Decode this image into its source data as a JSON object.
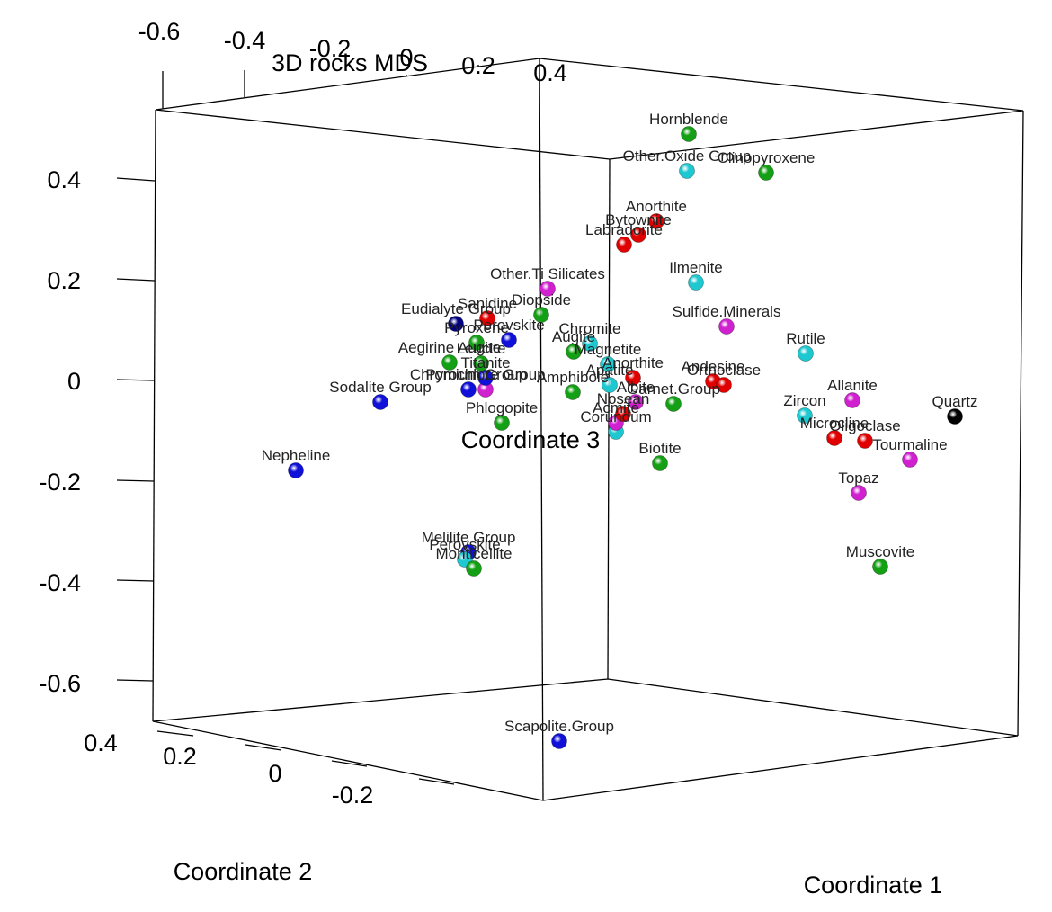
{
  "chart_data": {
    "type": "scatter",
    "title": "3D rocks MDS",
    "xlabel": "Coordinate 1",
    "ylabel": "Coordinate 2",
    "zlabel": "Coordinate 3",
    "ticks": {
      "top": [
        "-0.6",
        "-0.4",
        "-0.2",
        "0",
        "0.2",
        "0.4"
      ],
      "left": [
        "0.4",
        "0.2",
        "0",
        "-0.2",
        "-0.4",
        "-0.6"
      ],
      "front": [
        "0.4",
        "0.2",
        "0",
        "-0.2"
      ]
    },
    "colors": {
      "red": "#e00000",
      "green": "#14a014",
      "blue": "#1010d8",
      "cyan": "#1ec8d0",
      "magenta": "#d020d0",
      "black": "#000000",
      "navy": "#000080"
    },
    "points": [
      {
        "label": "Hornblende",
        "color": "green",
        "sx": 766,
        "sy": 149
      },
      {
        "label": "Other.Oxide Group",
        "color": "cyan",
        "sx": 764,
        "sy": 190
      },
      {
        "label": "Clinopyroxene",
        "color": "green",
        "sx": 852,
        "sy": 192
      },
      {
        "label": "Anorthite",
        "color": "red",
        "sx": 730,
        "sy": 246
      },
      {
        "label": "Bytownite",
        "color": "red",
        "sx": 710,
        "sy": 261
      },
      {
        "label": "Labradorite",
        "color": "red",
        "sx": 694,
        "sy": 272
      },
      {
        "label": "Ilmenite",
        "color": "cyan",
        "sx": 774,
        "sy": 314
      },
      {
        "label": "Other.Ti Silicates",
        "color": "magenta",
        "sx": 609,
        "sy": 321
      },
      {
        "label": "Diopside",
        "color": "green",
        "sx": 602,
        "sy": 350
      },
      {
        "label": "Sanidine",
        "color": "red",
        "sx": 542,
        "sy": 354
      },
      {
        "label": "Eudialyte Group",
        "color": "navy",
        "sx": 507,
        "sy": 360
      },
      {
        "label": "Pyroxene",
        "color": "green",
        "sx": 530,
        "sy": 381
      },
      {
        "label": "Perovskite",
        "color": "blue",
        "sx": 566,
        "sy": 378
      },
      {
        "label": "Sulfide.Minerals",
        "color": "magenta",
        "sx": 808,
        "sy": 363
      },
      {
        "label": "Chromite",
        "color": "cyan",
        "sx": 656,
        "sy": 382
      },
      {
        "label": "Augite",
        "color": "green",
        "sx": 638,
        "sy": 391
      },
      {
        "label": "Aegirine Augite",
        "color": "green",
        "sx": 500,
        "sy": 403
      },
      {
        "label": "Leucite",
        "color": "green",
        "sx": 535,
        "sy": 404
      },
      {
        "label": "Rutile",
        "color": "cyan",
        "sx": 896,
        "sy": 393
      },
      {
        "label": "Magnetite",
        "color": "cyan",
        "sx": 676,
        "sy": 405
      },
      {
        "label": "Anorthite",
        "color": "red",
        "sx": 704,
        "sy": 420
      },
      {
        "label": "Andesine",
        "color": "red",
        "sx": 793,
        "sy": 424
      },
      {
        "label": "Orthoclase",
        "color": "red",
        "sx": 805,
        "sy": 428
      },
      {
        "label": "Sodalite Group",
        "color": "blue",
        "sx": 423,
        "sy": 447
      },
      {
        "label": "Chromium Group",
        "color": "blue",
        "sx": 521,
        "sy": 433
      },
      {
        "label": "Pyrochlore Group",
        "color": "magenta",
        "sx": 540,
        "sy": 433
      },
      {
        "label": "Titanite",
        "color": "blue",
        "sx": 540,
        "sy": 420
      },
      {
        "label": "Amphibole",
        "color": "green",
        "sx": 637,
        "sy": 436
      },
      {
        "label": "Apatite",
        "color": "cyan",
        "sx": 678,
        "sy": 428
      },
      {
        "label": "Garnet.Group",
        "color": "green",
        "sx": 749,
        "sy": 449
      },
      {
        "label": "Albite",
        "color": "magenta",
        "sx": 707,
        "sy": 447
      },
      {
        "label": "Allanite",
        "color": "magenta",
        "sx": 948,
        "sy": 445
      },
      {
        "label": "Quartz",
        "color": "black",
        "sx": 1062,
        "sy": 463
      },
      {
        "label": "Zircon",
        "color": "cyan",
        "sx": 895,
        "sy": 462
      },
      {
        "label": "Phlogopite",
        "color": "green",
        "sx": 558,
        "sy": 470
      },
      {
        "label": "Corundum",
        "color": "cyan",
        "sx": 685,
        "sy": 480
      },
      {
        "label": "Acmite",
        "color": "magenta",
        "sx": 685,
        "sy": 470
      },
      {
        "label": "Nosean",
        "color": "red",
        "sx": 693,
        "sy": 460
      },
      {
        "label": "Microcline",
        "color": "red",
        "sx": 928,
        "sy": 487
      },
      {
        "label": "Oligoclase",
        "color": "red",
        "sx": 962,
        "sy": 490
      },
      {
        "label": "Tourmaline",
        "color": "magenta",
        "sx": 1012,
        "sy": 511
      },
      {
        "label": "Biotite",
        "color": "green",
        "sx": 734,
        "sy": 515
      },
      {
        "label": "Nepheline",
        "color": "blue",
        "sx": 329,
        "sy": 523
      },
      {
        "label": "Topaz",
        "color": "magenta",
        "sx": 955,
        "sy": 548
      },
      {
        "label": "Melilite Group",
        "color": "blue",
        "sx": 521,
        "sy": 614
      },
      {
        "label": "Perovskite",
        "color": "cyan",
        "sx": 517,
        "sy": 622
      },
      {
        "label": "Monticellite",
        "color": "green",
        "sx": 527,
        "sy": 632
      },
      {
        "label": "Muscovite",
        "color": "green",
        "sx": 979,
        "sy": 630
      },
      {
        "label": "Scapolite.Group",
        "color": "blue",
        "sx": 622,
        "sy": 824
      }
    ]
  }
}
